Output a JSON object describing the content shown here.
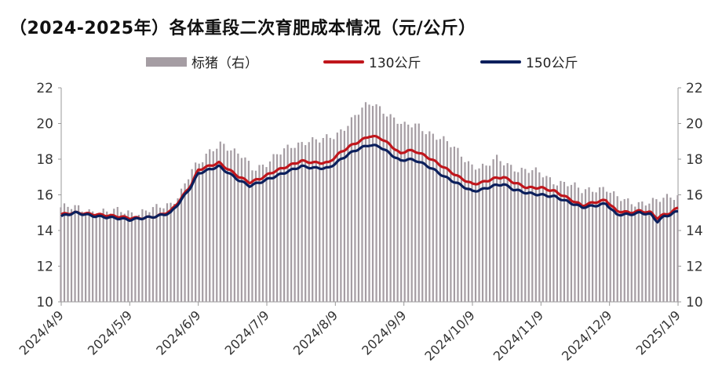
{
  "title": "（2024-2025年）各体重段二次育肥成本情况（元/公斤）",
  "legend": {
    "bar_label": "标猪（右）",
    "line1_label": "130公斤",
    "line2_label": "150公斤"
  },
  "colors": {
    "bar": "#a59da3",
    "line1": "#c0161c",
    "line2": "#0b1f5c",
    "axis": "#999999"
  },
  "chart_data": {
    "type": "bar+line",
    "title": "（2024-2025年）各体重段二次育肥成本情况（元/公斤）",
    "y_left_ticks": [
      10,
      12,
      14,
      16,
      18,
      20,
      22
    ],
    "y_right_ticks": [
      10,
      12,
      14,
      16,
      18,
      20,
      22
    ],
    "ylim": [
      10,
      22
    ],
    "x_tick_labels": [
      "2024/4/9",
      "2024/5/9",
      "2024/6/9",
      "2024/7/9",
      "2024/8/9",
      "2024/9/9",
      "2024/10/9",
      "2024/11/9",
      "2024/12/9",
      "2025/1/9"
    ],
    "x_range_months": [
      0,
      9
    ],
    "series": [
      {
        "name": "标猪（右）",
        "kind": "bar",
        "keypoints": [
          [
            0,
            15.3
          ],
          [
            0.3,
            15.2
          ],
          [
            0.7,
            15.0
          ],
          [
            0.9,
            15.1
          ],
          [
            1.1,
            15.0
          ],
          [
            1.4,
            15.2
          ],
          [
            1.6,
            15.5
          ],
          [
            1.75,
            16.2
          ],
          [
            1.9,
            17.3
          ],
          [
            2.05,
            17.8
          ],
          [
            2.2,
            18.6
          ],
          [
            2.35,
            19.0
          ],
          [
            2.5,
            18.4
          ],
          [
            2.65,
            18.1
          ],
          [
            2.8,
            17.5
          ],
          [
            3.0,
            17.8
          ],
          [
            3.2,
            18.3
          ],
          [
            3.4,
            18.8
          ],
          [
            3.6,
            19.1
          ],
          [
            3.8,
            19.0
          ],
          [
            4.0,
            19.3
          ],
          [
            4.2,
            20.1
          ],
          [
            4.4,
            20.8
          ],
          [
            4.55,
            21.1
          ],
          [
            4.7,
            20.8
          ],
          [
            4.9,
            20.2
          ],
          [
            5.0,
            19.8
          ],
          [
            5.2,
            19.9
          ],
          [
            5.4,
            19.5
          ],
          [
            5.6,
            19.0
          ],
          [
            5.8,
            18.4
          ],
          [
            6.0,
            17.7
          ],
          [
            6.2,
            17.5
          ],
          [
            6.35,
            18.0
          ],
          [
            6.5,
            17.8
          ],
          [
            6.7,
            17.4
          ],
          [
            7.0,
            17.2
          ],
          [
            7.2,
            16.8
          ],
          [
            7.4,
            16.6
          ],
          [
            7.6,
            16.2
          ],
          [
            7.8,
            16.4
          ],
          [
            7.95,
            16.4
          ],
          [
            8.1,
            15.8
          ],
          [
            8.3,
            15.6
          ],
          [
            8.5,
            15.6
          ],
          [
            8.7,
            15.6
          ],
          [
            8.9,
            15.9
          ],
          [
            9.0,
            16.0
          ]
        ]
      },
      {
        "name": "130公斤",
        "kind": "line",
        "keypoints": [
          [
            0,
            14.9
          ],
          [
            0.2,
            15.0
          ],
          [
            0.5,
            14.9
          ],
          [
            0.8,
            14.8
          ],
          [
            1.0,
            14.7
          ],
          [
            1.2,
            14.7
          ],
          [
            1.4,
            14.8
          ],
          [
            1.6,
            15.1
          ],
          [
            1.75,
            15.8
          ],
          [
            1.9,
            16.6
          ],
          [
            2.0,
            17.4
          ],
          [
            2.15,
            17.6
          ],
          [
            2.3,
            17.8
          ],
          [
            2.45,
            17.4
          ],
          [
            2.6,
            17.0
          ],
          [
            2.75,
            16.7
          ],
          [
            2.9,
            16.9
          ],
          [
            3.1,
            17.3
          ],
          [
            3.3,
            17.6
          ],
          [
            3.5,
            17.9
          ],
          [
            3.7,
            17.8
          ],
          [
            3.9,
            17.8
          ],
          [
            4.05,
            18.3
          ],
          [
            4.2,
            18.7
          ],
          [
            4.35,
            19.0
          ],
          [
            4.5,
            19.3
          ],
          [
            4.65,
            19.2
          ],
          [
            4.8,
            18.8
          ],
          [
            4.95,
            18.3
          ],
          [
            5.05,
            18.5
          ],
          [
            5.2,
            18.4
          ],
          [
            5.4,
            18.0
          ],
          [
            5.6,
            17.5
          ],
          [
            5.8,
            17.0
          ],
          [
            6.0,
            16.6
          ],
          [
            6.15,
            16.7
          ],
          [
            6.3,
            16.9
          ],
          [
            6.45,
            17.0
          ],
          [
            6.6,
            16.7
          ],
          [
            6.8,
            16.4
          ],
          [
            7.0,
            16.4
          ],
          [
            7.2,
            16.2
          ],
          [
            7.4,
            15.8
          ],
          [
            7.6,
            15.4
          ],
          [
            7.8,
            15.6
          ],
          [
            7.95,
            15.7
          ],
          [
            8.1,
            15.1
          ],
          [
            8.3,
            15.0
          ],
          [
            8.45,
            15.1
          ],
          [
            8.6,
            15.0
          ],
          [
            8.7,
            14.7
          ],
          [
            8.8,
            14.9
          ],
          [
            8.9,
            15.0
          ],
          [
            9.0,
            15.3
          ]
        ]
      },
      {
        "name": "150公斤",
        "kind": "line",
        "keypoints": [
          [
            0,
            14.8
          ],
          [
            0.2,
            15.0
          ],
          [
            0.5,
            14.8
          ],
          [
            0.8,
            14.7
          ],
          [
            1.0,
            14.6
          ],
          [
            1.2,
            14.7
          ],
          [
            1.4,
            14.8
          ],
          [
            1.6,
            15.0
          ],
          [
            1.75,
            15.7
          ],
          [
            1.9,
            16.5
          ],
          [
            2.0,
            17.2
          ],
          [
            2.15,
            17.4
          ],
          [
            2.3,
            17.6
          ],
          [
            2.45,
            17.2
          ],
          [
            2.6,
            16.8
          ],
          [
            2.75,
            16.5
          ],
          [
            2.9,
            16.7
          ],
          [
            3.1,
            17.0
          ],
          [
            3.3,
            17.3
          ],
          [
            3.5,
            17.6
          ],
          [
            3.7,
            17.5
          ],
          [
            3.9,
            17.5
          ],
          [
            4.05,
            17.9
          ],
          [
            4.2,
            18.3
          ],
          [
            4.35,
            18.6
          ],
          [
            4.5,
            18.8
          ],
          [
            4.65,
            18.7
          ],
          [
            4.8,
            18.3
          ],
          [
            4.95,
            17.9
          ],
          [
            5.05,
            18.0
          ],
          [
            5.2,
            17.9
          ],
          [
            5.4,
            17.5
          ],
          [
            5.6,
            17.0
          ],
          [
            5.8,
            16.6
          ],
          [
            6.0,
            16.2
          ],
          [
            6.15,
            16.3
          ],
          [
            6.3,
            16.5
          ],
          [
            6.45,
            16.6
          ],
          [
            6.6,
            16.3
          ],
          [
            6.8,
            16.1
          ],
          [
            7.0,
            16.0
          ],
          [
            7.2,
            15.9
          ],
          [
            7.4,
            15.6
          ],
          [
            7.6,
            15.3
          ],
          [
            7.8,
            15.4
          ],
          [
            7.95,
            15.5
          ],
          [
            8.1,
            14.9
          ],
          [
            8.3,
            14.9
          ],
          [
            8.45,
            15.0
          ],
          [
            8.6,
            14.9
          ],
          [
            8.7,
            14.5
          ],
          [
            8.8,
            14.8
          ],
          [
            8.9,
            14.9
          ],
          [
            9.0,
            15.1
          ]
        ]
      }
    ]
  }
}
